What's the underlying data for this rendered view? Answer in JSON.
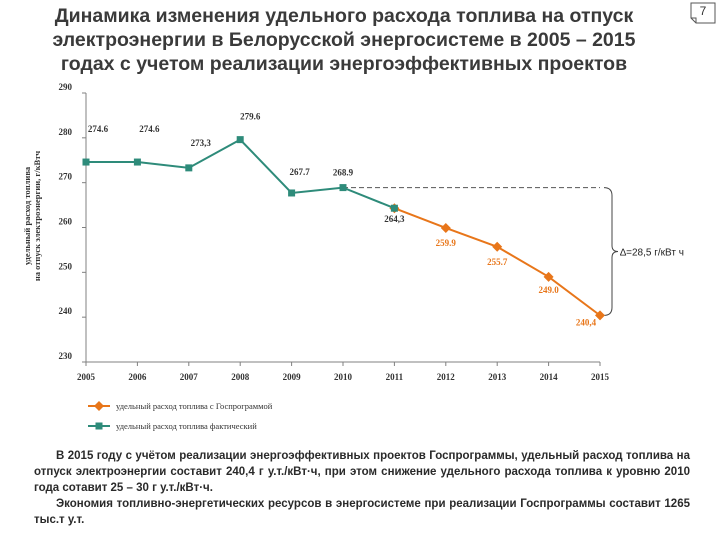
{
  "slide_number": "7",
  "title_lines": [
    "Динамика изменения удельного расхода топлива на отпуск",
    "электроэнергии в Белорусской энергосистеме в 2005 – 2015",
    "годах с учетом реализации энергоэффективных проектов"
  ],
  "colors": {
    "actual": "#2e8b7a",
    "program": "#e8761a",
    "axis": "#808080"
  },
  "chart_data": {
    "type": "line",
    "ylabel_lines": [
      "удельный расход топлива",
      "на отпуск электроэнергии, г/кВтч"
    ],
    "ylim": [
      230,
      290
    ],
    "yticks": [
      "230",
      "240",
      "250",
      "260",
      "270",
      "280",
      "290"
    ],
    "categories": [
      "2005",
      "2006",
      "2007",
      "2008",
      "2009",
      "2010",
      "2011",
      "2012",
      "2013",
      "2014",
      "2015"
    ],
    "series": [
      {
        "name": "удельный расход топлива фактический",
        "color_key": "actual",
        "marker": "square",
        "x": [
          "2005",
          "2006",
          "2007",
          "2008",
          "2009",
          "2010",
          "2011"
        ],
        "values": [
          274.6,
          274.6,
          273.3,
          279.6,
          267.7,
          268.9,
          264.3
        ],
        "labels": [
          "274.6",
          "274.6",
          "273,3",
          "279.6",
          "267.7",
          "268.9",
          "264,3"
        ]
      },
      {
        "name": "удельный расход топлива с Госпрограммой",
        "color_key": "program",
        "marker": "diamond",
        "x": [
          "2011",
          "2012",
          "2013",
          "2014",
          "2015"
        ],
        "values": [
          264.3,
          259.9,
          255.7,
          249.0,
          240.4
        ],
        "labels": [
          "",
          "259.9",
          "255.7",
          "249.0",
          "240,4"
        ]
      }
    ],
    "reference_line": {
      "value": 268.9,
      "from": "2010",
      "to": "2015",
      "style": "dashed"
    },
    "annotation": "∆=28,5 г/кВт ч",
    "legend": [
      "удельный расход топлива с Госпрограммой",
      "удельный расход топлива фактический"
    ]
  },
  "note": {
    "paragraph1": "В 2015 году с учётом реализации энергоэффективных проектов Госпрограммы, удельный расход топлива на отпуск электроэнергии составит 240,4 г у.т./кВт·ч, при этом снижение удельного расхода топлива к уровню 2010 года сотавит 25 – 30 г у.т./кВт·ч.",
    "paragraph2": "Экономия топливно-энергетических ресурсов в энергосистеме при реализации Госпрограммы составит 1265 тыс.т у.т."
  }
}
